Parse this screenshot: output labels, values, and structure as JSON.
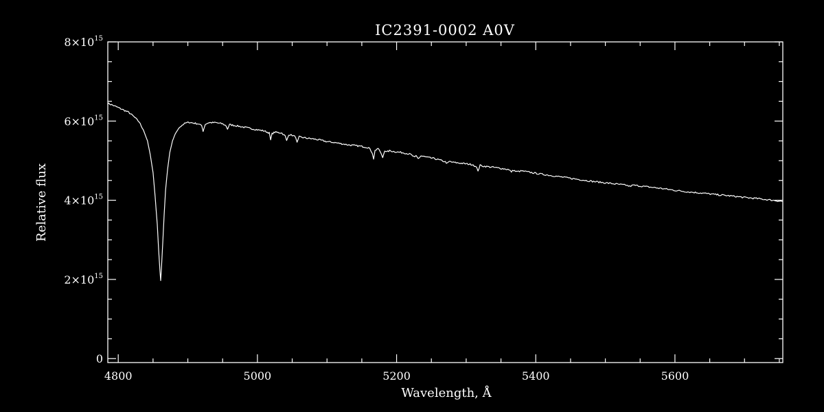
{
  "chart_data": {
    "type": "line",
    "title": "IC2391-0002  A0V",
    "xlabel": "Wavelength, Å",
    "ylabel": "Relative flux",
    "xlim": [
      4785,
      5755
    ],
    "ylim": [
      -100000000000000.0,
      8000000000000000.0
    ],
    "x_ticks": [
      {
        "value": 4800,
        "label": "4800"
      },
      {
        "value": 5000,
        "label": "5000"
      },
      {
        "value": 5200,
        "label": "5200"
      },
      {
        "value": 5400,
        "label": "5400"
      },
      {
        "value": 5600,
        "label": "5600"
      }
    ],
    "y_ticks": [
      {
        "value": 0,
        "mantissa": "0",
        "exponent": ""
      },
      {
        "value": 2000000000000000.0,
        "mantissa": "2×10",
        "exponent": "15"
      },
      {
        "value": 4000000000000000.0,
        "mantissa": "4×10",
        "exponent": "15"
      },
      {
        "value": 6000000000000000.0,
        "mantissa": "6×10",
        "exponent": "15"
      },
      {
        "value": 8000000000000000.0,
        "mantissa": "8×10",
        "exponent": "15"
      }
    ],
    "grid": false,
    "line_color": "#ffffff",
    "background": "#000000",
    "series": [
      {
        "x": [
          4785,
          4795,
          4805,
          4815,
          4822,
          4830,
          4836,
          4842,
          4846,
          4850,
          4853,
          4856,
          4858,
          4860,
          4861,
          4862,
          4864,
          4866,
          4868,
          4871,
          4874,
          4878,
          4882,
          4887,
          4892,
          4897,
          4902,
          4908,
          4915,
          4920,
          4922,
          4925,
          4930,
          4940,
          4950,
          4955,
          4957,
          4960,
          4970,
          4985,
          5000,
          5010,
          5017,
          5019,
          5021,
          5025,
          5035,
          5040,
          5042,
          5045,
          5050,
          5055,
          5057,
          5060,
          5070,
          5080,
          5090,
          5100,
          5110,
          5120,
          5130,
          5140,
          5150,
          5160,
          5165,
          5167,
          5169,
          5172,
          5175,
          5180,
          5183,
          5186,
          5190,
          5200,
          5210,
          5220,
          5226,
          5228,
          5231,
          5235,
          5245,
          5255,
          5265,
          5270,
          5273,
          5276,
          5280,
          5290,
          5300,
          5310,
          5315,
          5317,
          5320,
          5325,
          5340,
          5360,
          5365,
          5368,
          5372,
          5380,
          5400,
          5420,
          5440,
          5460,
          5480,
          5500,
          5520,
          5530,
          5535,
          5540,
          5560,
          5580,
          5600,
          5620,
          5640,
          5660,
          5680,
          5700,
          5720,
          5740,
          5755
        ],
        "y": [
          6450000000000000.0,
          6380000000000000.0,
          6300000000000000.0,
          6220000000000000.0,
          6120000000000000.0,
          5980000000000000.0,
          5780000000000000.0,
          5500000000000000.0,
          5150000000000000.0,
          4700000000000000.0,
          4100000000000000.0,
          3400000000000000.0,
          2750000000000000.0,
          2200000000000000.0,
          1970000000000000.0,
          2250000000000000.0,
          2950000000000000.0,
          3650000000000000.0,
          4250000000000000.0,
          4800000000000000.0,
          5200000000000000.0,
          5500000000000000.0,
          5680000000000000.0,
          5820000000000000.0,
          5900000000000000.0,
          5950000000000000.0,
          5970000000000000.0,
          5950000000000000.0,
          5930000000000000.0,
          5880000000000000.0,
          5750000000000000.0,
          5920000000000000.0,
          5960000000000000.0,
          5960000000000000.0,
          5930000000000000.0,
          5880000000000000.0,
          5800000000000000.0,
          5910000000000000.0,
          5880000000000000.0,
          5830000000000000.0,
          5780000000000000.0,
          5750000000000000.0,
          5700000000000000.0,
          5520000000000000.0,
          5680000000000000.0,
          5720000000000000.0,
          5700000000000000.0,
          5620000000000000.0,
          5500000000000000.0,
          5660000000000000.0,
          5640000000000000.0,
          5600000000000000.0,
          5450000000000000.0,
          5600000000000000.0,
          5570000000000000.0,
          5550000000000000.0,
          5520000000000000.0,
          5480000000000000.0,
          5460000000000000.0,
          5430000000000000.0,
          5400000000000000.0,
          5380000000000000.0,
          5360000000000000.0,
          5330000000000000.0,
          5200000000000000.0,
          5050000000000000.0,
          5250000000000000.0,
          5300000000000000.0,
          5280000000000000.0,
          5080000000000000.0,
          5260000000000000.0,
          5220000000000000.0,
          5250000000000000.0,
          5220000000000000.0,
          5200000000000000.0,
          5160000000000000.0,
          5080000000000000.0,
          5120000000000000.0,
          5050000000000000.0,
          5120000000000000.0,
          5080000000000000.0,
          5050000000000000.0,
          5000000000000000.0,
          4970000000000000.0,
          4930000000000000.0,
          4980000000000000.0,
          4960000000000000.0,
          4940000000000000.0,
          4920000000000000.0,
          4900000000000000.0,
          4820000000000000.0,
          4750000000000000.0,
          4880000000000000.0,
          4860000000000000.0,
          4830000000000000.0,
          4780000000000000.0,
          4720000000000000.0,
          4760000000000000.0,
          4720000000000000.0,
          4740000000000000.0,
          4680000000000000.0,
          4630000000000000.0,
          4580000000000000.0,
          4530000000000000.0,
          4480000000000000.0,
          4440000000000000.0,
          4400000000000000.0,
          4380000000000000.0,
          4350000000000000.0,
          4380000000000000.0,
          4340000000000000.0,
          4300000000000000.0,
          4250000000000000.0,
          4210000000000000.0,
          4180000000000000.0,
          4140000000000000.0,
          4110000000000000.0,
          4070000000000000.0,
          4040000000000000.0,
          4000000000000000.0,
          3970000000000000.0
        ]
      }
    ]
  }
}
